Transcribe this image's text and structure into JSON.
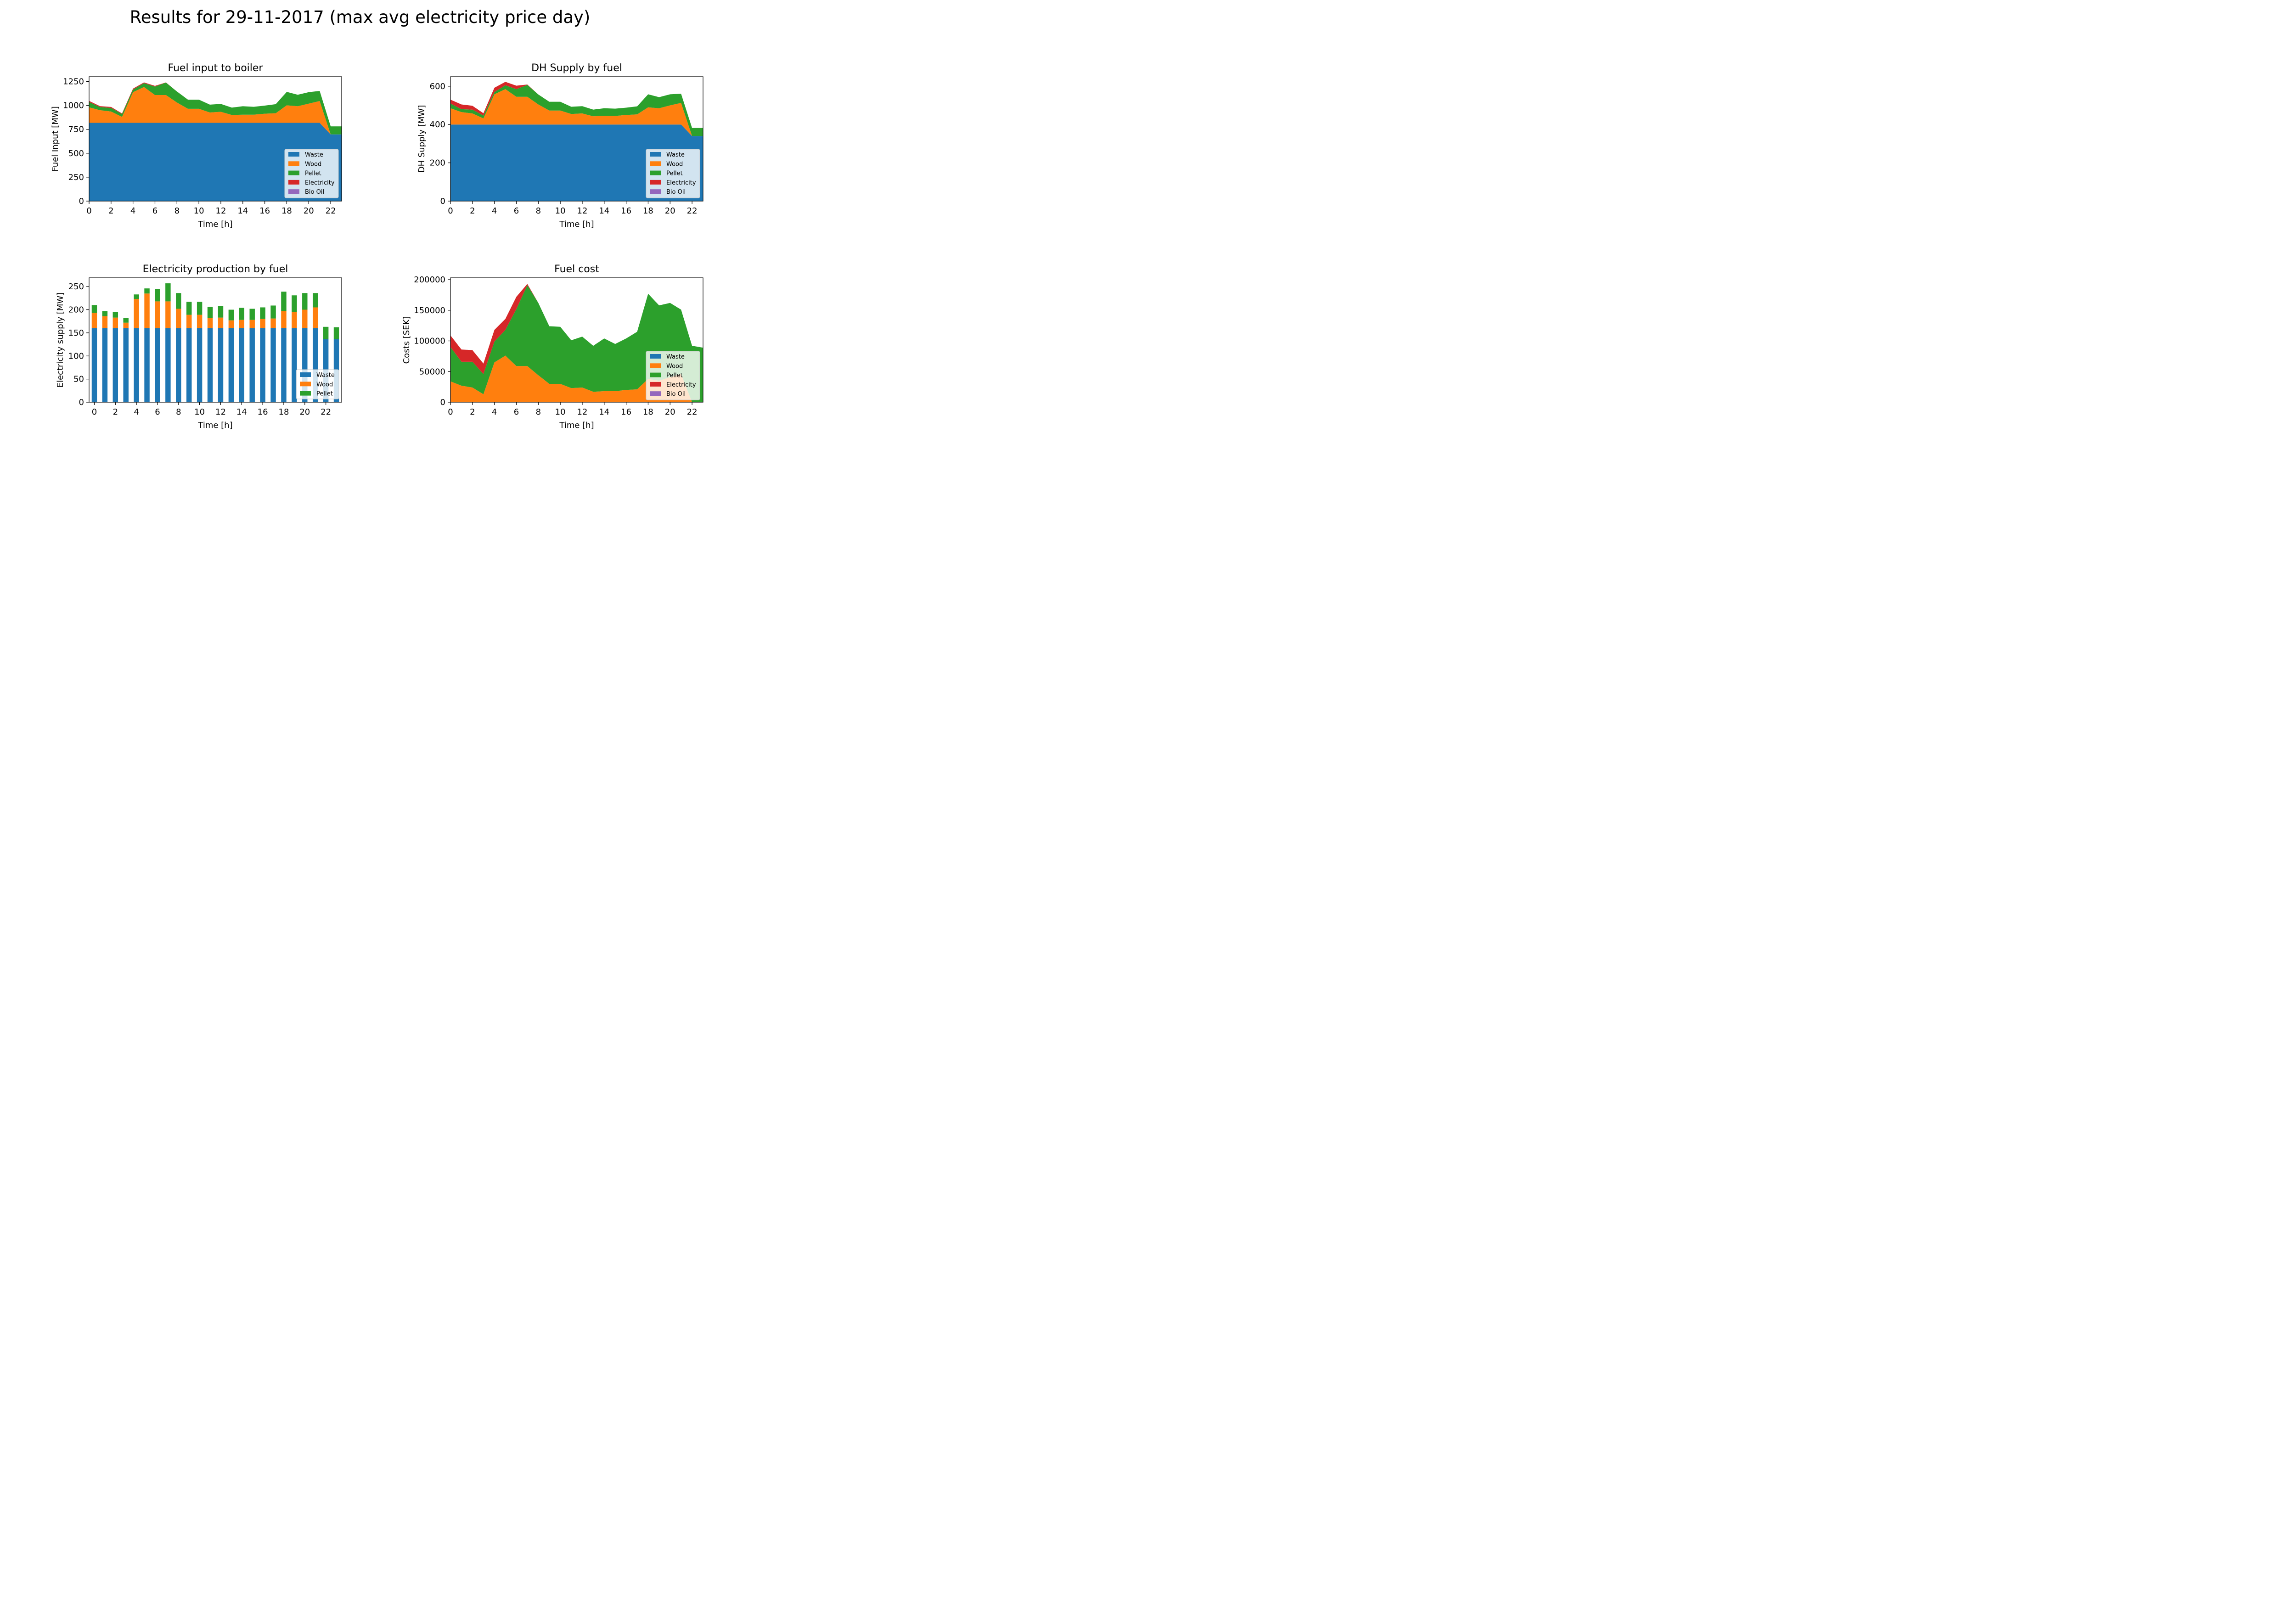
{
  "figure_title": "Results for 29-11-2017 (max avg electricity price day)",
  "colors": {
    "Waste": "#1f77b4",
    "Wood": "#ff7f0e",
    "Pellet": "#2ca02c",
    "Electricity": "#d62728",
    "Bio Oil": "#9467bd"
  },
  "chart_data": [
    {
      "type": "area",
      "stacked": true,
      "title": "Fuel input to boiler",
      "xlabel": "Time [h]",
      "ylabel": "Fuel Input [MW]",
      "xlim": [
        0,
        23
      ],
      "ylim": [
        0,
        1300
      ],
      "xticks": [
        0,
        2,
        4,
        6,
        8,
        10,
        12,
        14,
        16,
        18,
        20,
        22
      ],
      "yticks": [
        0,
        250,
        500,
        750,
        1000,
        1250
      ],
      "legend_position": "lower-right",
      "legend": [
        "Waste",
        "Wood",
        "Pellet",
        "Electricity",
        "Bio Oil"
      ],
      "x": [
        0,
        1,
        2,
        3,
        4,
        5,
        6,
        7,
        8,
        9,
        10,
        11,
        12,
        13,
        14,
        15,
        16,
        17,
        18,
        19,
        20,
        21,
        22,
        23
      ],
      "series": [
        {
          "name": "Waste",
          "values": [
            818,
            818,
            818,
            818,
            818,
            818,
            818,
            818,
            818,
            818,
            818,
            818,
            818,
            818,
            818,
            818,
            818,
            818,
            818,
            818,
            818,
            818,
            697,
            697
          ]
        },
        {
          "name": "Wood",
          "values": [
            162,
            132,
            118,
            62,
            320,
            374,
            290,
            290,
            212,
            147,
            147,
            108,
            115,
            82,
            85,
            85,
            95,
            100,
            183,
            173,
            200,
            228,
            0,
            0
          ]
        },
        {
          "name": "Pellet",
          "values": [
            55,
            32,
            38,
            30,
            27,
            40,
            88,
            130,
            115,
            95,
            95,
            82,
            82,
            77,
            88,
            82,
            85,
            95,
            140,
            120,
            120,
            105,
            84,
            84
          ]
        },
        {
          "name": "Electricity",
          "values": [
            12,
            10,
            10,
            6,
            10,
            8,
            8,
            2,
            0,
            0,
            0,
            0,
            0,
            0,
            0,
            0,
            0,
            0,
            0,
            0,
            0,
            0,
            0,
            0
          ]
        },
        {
          "name": "Bio Oil",
          "values": [
            0,
            0,
            0,
            0,
            0,
            0,
            0,
            0,
            0,
            0,
            0,
            0,
            0,
            0,
            0,
            0,
            0,
            0,
            0,
            0,
            0,
            0,
            0,
            0
          ]
        }
      ]
    },
    {
      "type": "area",
      "stacked": true,
      "title": "DH Supply by fuel",
      "xlabel": "Time [h]",
      "ylabel": "DH Supply [MW]",
      "xlim": [
        0,
        23
      ],
      "ylim": [
        0,
        650
      ],
      "xticks": [
        0,
        2,
        4,
        6,
        8,
        10,
        12,
        14,
        16,
        18,
        20,
        22
      ],
      "yticks": [
        0,
        200,
        400,
        600
      ],
      "legend_position": "lower-right",
      "legend": [
        "Waste",
        "Wood",
        "Pellet",
        "Electricity",
        "Bio Oil"
      ],
      "x": [
        0,
        1,
        2,
        3,
        4,
        5,
        6,
        7,
        8,
        9,
        10,
        11,
        12,
        13,
        14,
        15,
        16,
        17,
        18,
        19,
        20,
        21,
        22,
        23
      ],
      "series": [
        {
          "name": "Waste",
          "values": [
            400,
            400,
            400,
            400,
            400,
            400,
            400,
            400,
            400,
            400,
            400,
            400,
            400,
            400,
            400,
            400,
            400,
            400,
            400,
            400,
            400,
            400,
            340,
            340
          ]
        },
        {
          "name": "Wood",
          "values": [
            85,
            65,
            58,
            32,
            158,
            185,
            145,
            145,
            105,
            73,
            73,
            55,
            58,
            43,
            45,
            45,
            50,
            53,
            90,
            85,
            100,
            113,
            0,
            0
          ]
        },
        {
          "name": "Pellet",
          "values": [
            25,
            15,
            20,
            15,
            12,
            20,
            40,
            62,
            52,
            46,
            46,
            38,
            38,
            35,
            40,
            38,
            38,
            42,
            68,
            58,
            58,
            48,
            42,
            42
          ]
        },
        {
          "name": "Electricity",
          "values": [
            20,
            25,
            20,
            12,
            22,
            18,
            18,
            2,
            0,
            0,
            0,
            0,
            0,
            0,
            0,
            0,
            0,
            0,
            0,
            0,
            0,
            0,
            0,
            0
          ]
        },
        {
          "name": "Bio Oil",
          "values": [
            0,
            0,
            0,
            0,
            0,
            0,
            0,
            0,
            0,
            0,
            0,
            0,
            0,
            0,
            0,
            0,
            0,
            0,
            0,
            0,
            0,
            0,
            0,
            0
          ]
        }
      ]
    },
    {
      "type": "bar",
      "stacked": true,
      "title": "Electricity production by fuel",
      "xlabel": "Time [h]",
      "ylabel": "Electricity supply [MW]",
      "xlim": [
        -0.5,
        23.5
      ],
      "ylim": [
        0,
        269
      ],
      "xticks": [
        0,
        2,
        4,
        6,
        8,
        10,
        12,
        14,
        16,
        18,
        20,
        22
      ],
      "yticks": [
        0,
        50,
        100,
        150,
        200,
        250
      ],
      "legend_position": "lower-right",
      "legend": [
        "Waste",
        "Wood",
        "Pellet"
      ],
      "categories": [
        0,
        1,
        2,
        3,
        4,
        5,
        6,
        7,
        8,
        9,
        10,
        11,
        12,
        13,
        14,
        15,
        16,
        17,
        18,
        19,
        20,
        21,
        22,
        23
      ],
      "series": [
        {
          "name": "Waste",
          "values": [
            160,
            160,
            160,
            160,
            160,
            160,
            160,
            160,
            160,
            160,
            160,
            160,
            160,
            160,
            160,
            160,
            160,
            160,
            160,
            160,
            160,
            160,
            136,
            136
          ]
        },
        {
          "name": "Wood",
          "values": [
            33,
            26,
            23,
            12,
            63,
            75,
            58,
            58,
            42,
            29,
            29,
            22,
            23,
            17,
            18,
            18,
            20,
            21,
            37,
            35,
            40,
            45,
            0,
            0
          ]
        },
        {
          "name": "Pellet",
          "values": [
            17,
            11,
            12,
            10,
            10,
            11,
            27,
            39,
            34,
            28,
            28,
            24,
            25,
            23,
            26,
            24,
            25,
            28,
            42,
            36,
            36,
            31,
            27,
            26
          ]
        }
      ]
    },
    {
      "type": "area",
      "stacked": true,
      "title": "Fuel cost",
      "xlabel": "Time [h]",
      "ylabel": "Costs [SEK]",
      "xlim": [
        0,
        23
      ],
      "ylim": [
        0,
        203000
      ],
      "xticks": [
        0,
        2,
        4,
        6,
        8,
        10,
        12,
        14,
        16,
        18,
        20,
        22
      ],
      "yticks": [
        0,
        50000,
        100000,
        150000,
        200000
      ],
      "legend_position": "lower-right",
      "legend": [
        "Waste",
        "Wood",
        "Pellet",
        "Electricity",
        "Bio Oil"
      ],
      "x": [
        0,
        1,
        2,
        3,
        4,
        5,
        6,
        7,
        8,
        9,
        10,
        11,
        12,
        13,
        14,
        15,
        16,
        17,
        18,
        19,
        20,
        21,
        22,
        23
      ],
      "series": [
        {
          "name": "Waste",
          "values": [
            0,
            0,
            0,
            0,
            0,
            0,
            0,
            0,
            0,
            0,
            0,
            0,
            0,
            0,
            0,
            0,
            0,
            0,
            0,
            0,
            0,
            0,
            0,
            0
          ]
        },
        {
          "name": "Wood",
          "values": [
            34000,
            27000,
            24000,
            13000,
            65000,
            76000,
            59000,
            59000,
            44000,
            30000,
            30000,
            23000,
            24000,
            17000,
            18000,
            18000,
            20000,
            21000,
            38000,
            35000,
            41000,
            46000,
            0,
            0
          ]
        },
        {
          "name": "Pellet",
          "values": [
            56000,
            39000,
            42000,
            33000,
            34000,
            42000,
            93000,
            132000,
            118000,
            94000,
            93000,
            78000,
            83000,
            75000,
            86000,
            77000,
            84000,
            94000,
            139000,
            123000,
            121000,
            105000,
            92000,
            89000
          ]
        },
        {
          "name": "Electricity",
          "values": [
            19000,
            20000,
            19000,
            17000,
            19000,
            18000,
            20000,
            2000,
            0,
            0,
            0,
            0,
            0,
            0,
            0,
            0,
            0,
            0,
            0,
            0,
            0,
            0,
            0,
            0
          ]
        },
        {
          "name": "Bio Oil",
          "values": [
            0,
            0,
            0,
            0,
            0,
            0,
            0,
            0,
            0,
            0,
            0,
            0,
            0,
            0,
            0,
            0,
            0,
            0,
            0,
            0,
            0,
            0,
            0,
            0
          ]
        }
      ]
    }
  ]
}
